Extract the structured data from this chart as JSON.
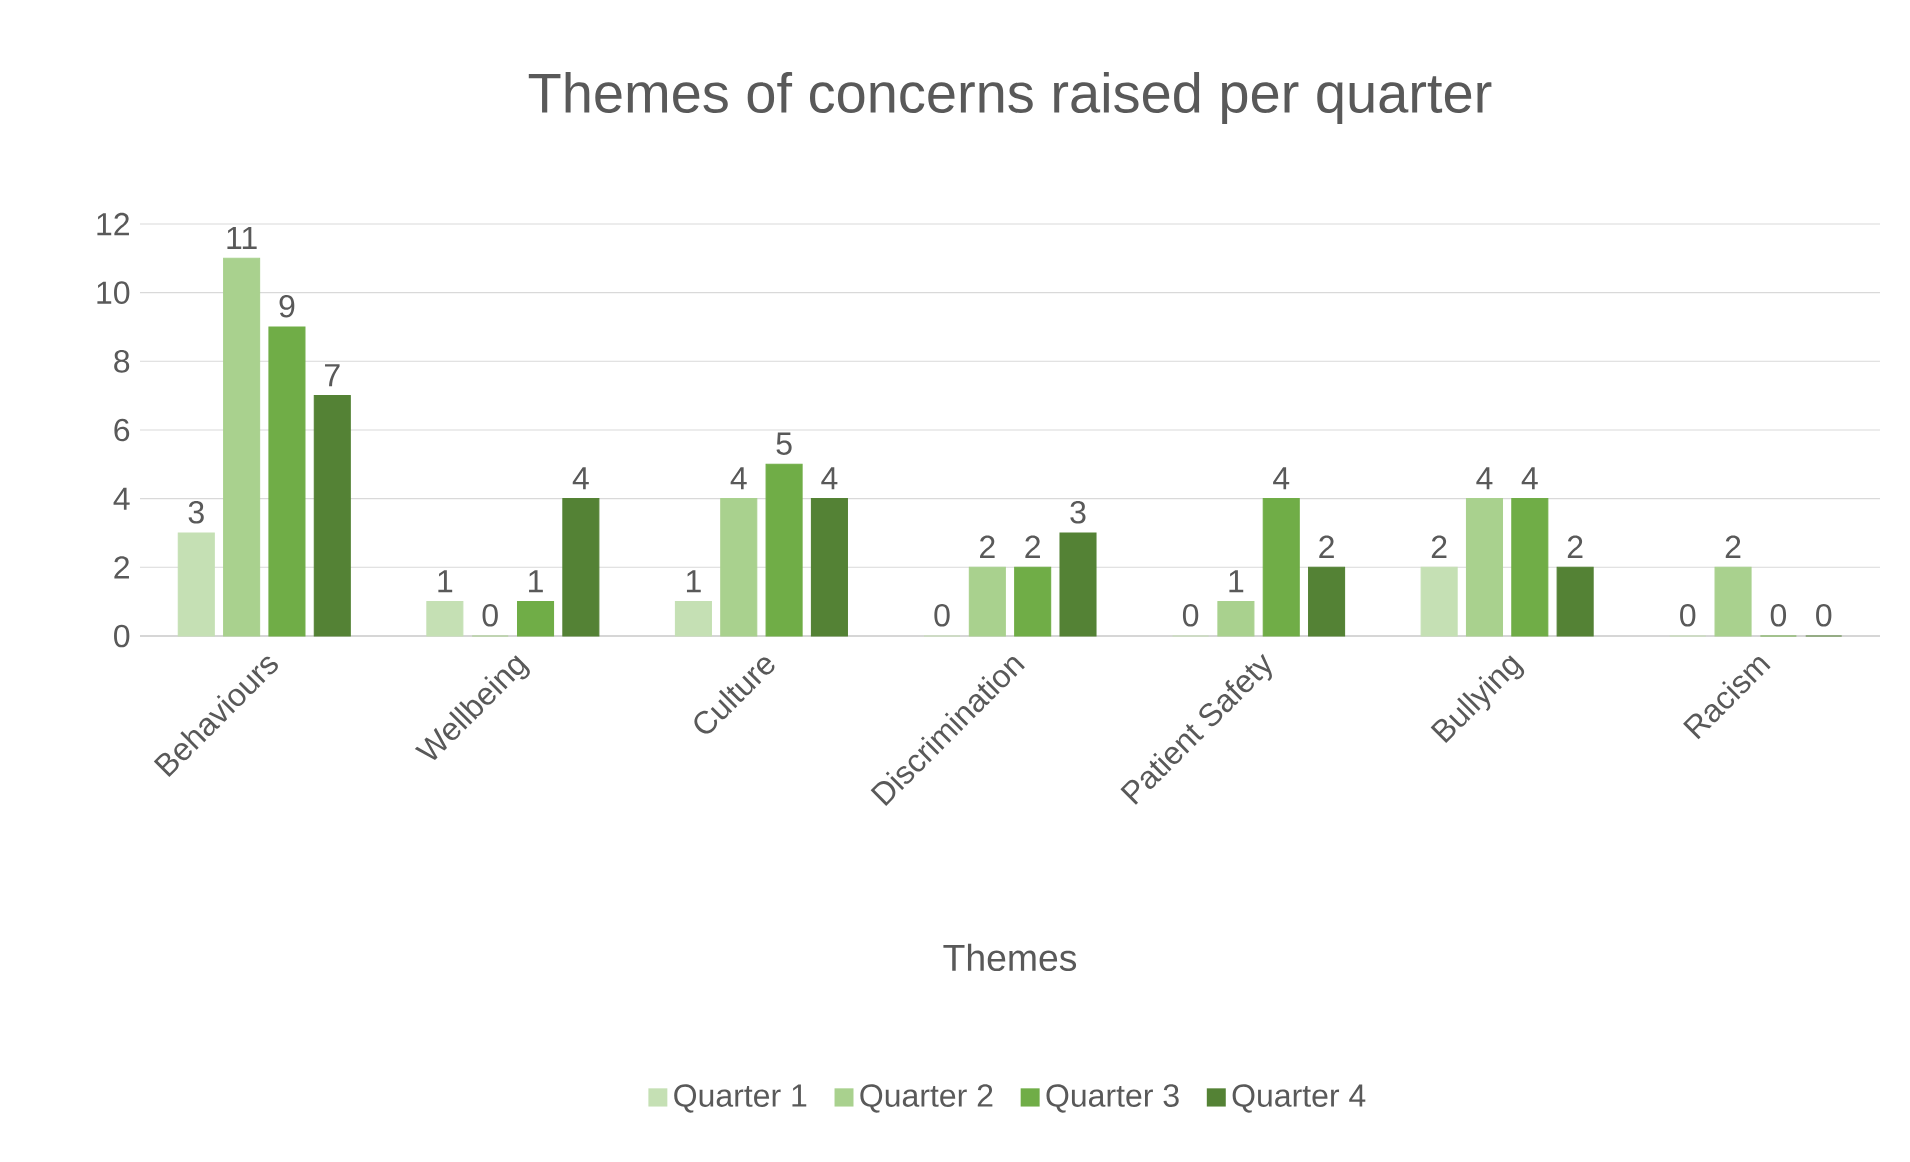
{
  "chart_data": {
    "type": "bar",
    "title": "Themes of concerns raised per quarter",
    "xlabel": "Themes",
    "categories": [
      "Behaviours",
      "Wellbeing",
      "Culture",
      "Discrimination",
      "Patient Safety",
      "Bullying",
      "Racism"
    ],
    "series": [
      {
        "name": "Quarter 1",
        "color": "#c5e0b4",
        "values": [
          3,
          1,
          1,
          0,
          0,
          2,
          0
        ]
      },
      {
        "name": "Quarter 2",
        "color": "#a9d18e",
        "values": [
          11,
          0,
          4,
          2,
          1,
          4,
          2
        ]
      },
      {
        "name": "Quarter 3",
        "color": "#70ad47",
        "values": [
          9,
          1,
          5,
          2,
          4,
          4,
          0
        ]
      },
      {
        "name": "Quarter 4",
        "color": "#548235",
        "values": [
          7,
          4,
          4,
          3,
          2,
          2,
          0
        ]
      }
    ],
    "ylim": [
      0,
      12
    ],
    "yticks": [
      0,
      2,
      4,
      6,
      8,
      10,
      12
    ],
    "grid": "y",
    "legend": "bottom",
    "data_labels": true
  }
}
